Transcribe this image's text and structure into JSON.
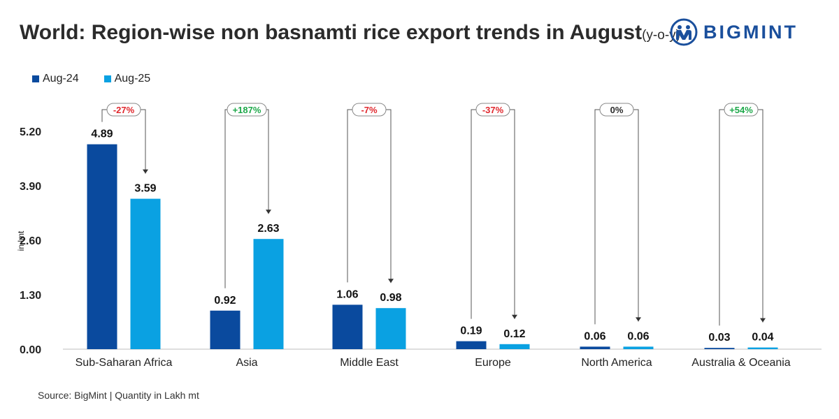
{
  "header": {
    "title": "World: Region-wise non basnamti rice export trends in August",
    "title_suffix": "(y-o-y)"
  },
  "brand": {
    "name": "BIGMINT",
    "color": "#1a4f9c"
  },
  "footer": {
    "source": "Source: BigMint  |  Quantity in Lakh mt"
  },
  "chart_data": {
    "type": "bar",
    "title": "World: Region-wise non basnamti rice export trends in August (y-o-y)",
    "ylabel": "in lmt",
    "xlabel": "",
    "ylim": [
      0,
      5.2
    ],
    "yticks": [
      "0.00",
      "1.30",
      "2.60",
      "3.90",
      "5.20"
    ],
    "ytick_values": [
      0,
      1.3,
      2.6,
      3.9,
      5.2
    ],
    "categories": [
      "Sub-Saharan Africa",
      "Asia",
      "Middle East",
      "Europe",
      "North America",
      "Australia & Oceania"
    ],
    "series": [
      {
        "name": "Aug-24",
        "color": "#0a4a9e",
        "values": [
          4.89,
          0.92,
          1.06,
          0.19,
          0.06,
          0.03
        ],
        "labels": [
          "4.89",
          "0.92",
          "1.06",
          "0.19",
          "0.06",
          "0.03"
        ]
      },
      {
        "name": "Aug-25",
        "color": "#0aa1e2",
        "values": [
          3.59,
          2.63,
          0.98,
          0.12,
          0.06,
          0.04
        ],
        "labels": [
          "3.59",
          "2.63",
          "0.98",
          "0.12",
          "0.06",
          "0.04"
        ]
      }
    ],
    "changes": [
      {
        "label": "-27%",
        "color": "#e0282e"
      },
      {
        "label": "+187%",
        "color": "#1ea84a"
      },
      {
        "label": "-7%",
        "color": "#e0282e"
      },
      {
        "label": "-37%",
        "color": "#e0282e"
      },
      {
        "label": "0%",
        "color": "#2b2b2b"
      },
      {
        "label": "+54%",
        "color": "#1ea84a"
      }
    ],
    "legend_position": "top-left",
    "grid": false
  }
}
